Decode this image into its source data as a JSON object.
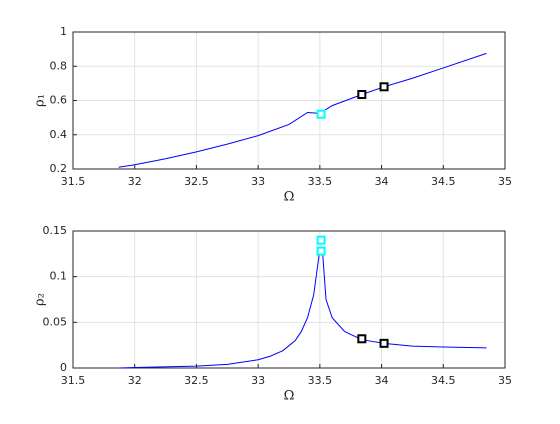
{
  "chart_data": [
    {
      "type": "line",
      "xlabel": "Ω",
      "ylabel": "ρ₁",
      "xlim": [
        31.5,
        35
      ],
      "xticks": [
        31.5,
        32,
        32.5,
        33,
        33.5,
        34,
        34.5,
        35
      ],
      "ylim": [
        0.2,
        1
      ],
      "yticks": [
        0.2,
        0.4,
        0.6,
        0.8,
        1
      ],
      "grid": true,
      "series": [
        {
          "color": "#0000ff",
          "x": [
            31.87,
            32.0,
            32.25,
            32.5,
            32.75,
            33.0,
            33.25,
            33.4,
            33.5,
            33.6,
            33.84,
            34.02,
            34.25,
            34.5,
            34.85
          ],
          "values": [
            0.21,
            0.225,
            0.26,
            0.3,
            0.345,
            0.395,
            0.46,
            0.53,
            0.525,
            0.57,
            0.635,
            0.68,
            0.73,
            0.79,
            0.875
          ]
        }
      ],
      "markers": [
        {
          "color": "#00ffff",
          "x": [
            33.51
          ],
          "values": [
            0.52
          ]
        },
        {
          "color": "#000000",
          "x": [
            33.84,
            34.02
          ],
          "values": [
            0.635,
            0.68
          ]
        }
      ]
    },
    {
      "type": "line",
      "xlabel": "Ω",
      "ylabel": "ρ₂",
      "xlim": [
        31.5,
        35
      ],
      "xticks": [
        31.5,
        32,
        32.5,
        33,
        33.5,
        34,
        34.5,
        35
      ],
      "ylim": [
        0,
        0.15
      ],
      "yticks": [
        0,
        0.05,
        0.1,
        0.15
      ],
      "grid": true,
      "series": [
        {
          "color": "#0000ff",
          "x": [
            31.87,
            32.0,
            32.5,
            32.75,
            33.0,
            33.1,
            33.2,
            33.3,
            33.35,
            33.4,
            33.45,
            33.5,
            33.52,
            33.55,
            33.6,
            33.7,
            33.84,
            34.02,
            34.25,
            34.5,
            34.85
          ],
          "values": [
            0,
            0.0005,
            0.002,
            0.004,
            0.009,
            0.013,
            0.019,
            0.03,
            0.04,
            0.055,
            0.08,
            0.13,
            0.13,
            0.075,
            0.055,
            0.04,
            0.031,
            0.027,
            0.024,
            0.023,
            0.022
          ]
        }
      ],
      "markers": [
        {
          "color": "#00ffff",
          "x": [
            33.51,
            33.51
          ],
          "values": [
            0.14,
            0.128
          ]
        },
        {
          "color": "#000000",
          "x": [
            33.84,
            34.02
          ],
          "values": [
            0.032,
            0.027
          ]
        }
      ]
    }
  ]
}
